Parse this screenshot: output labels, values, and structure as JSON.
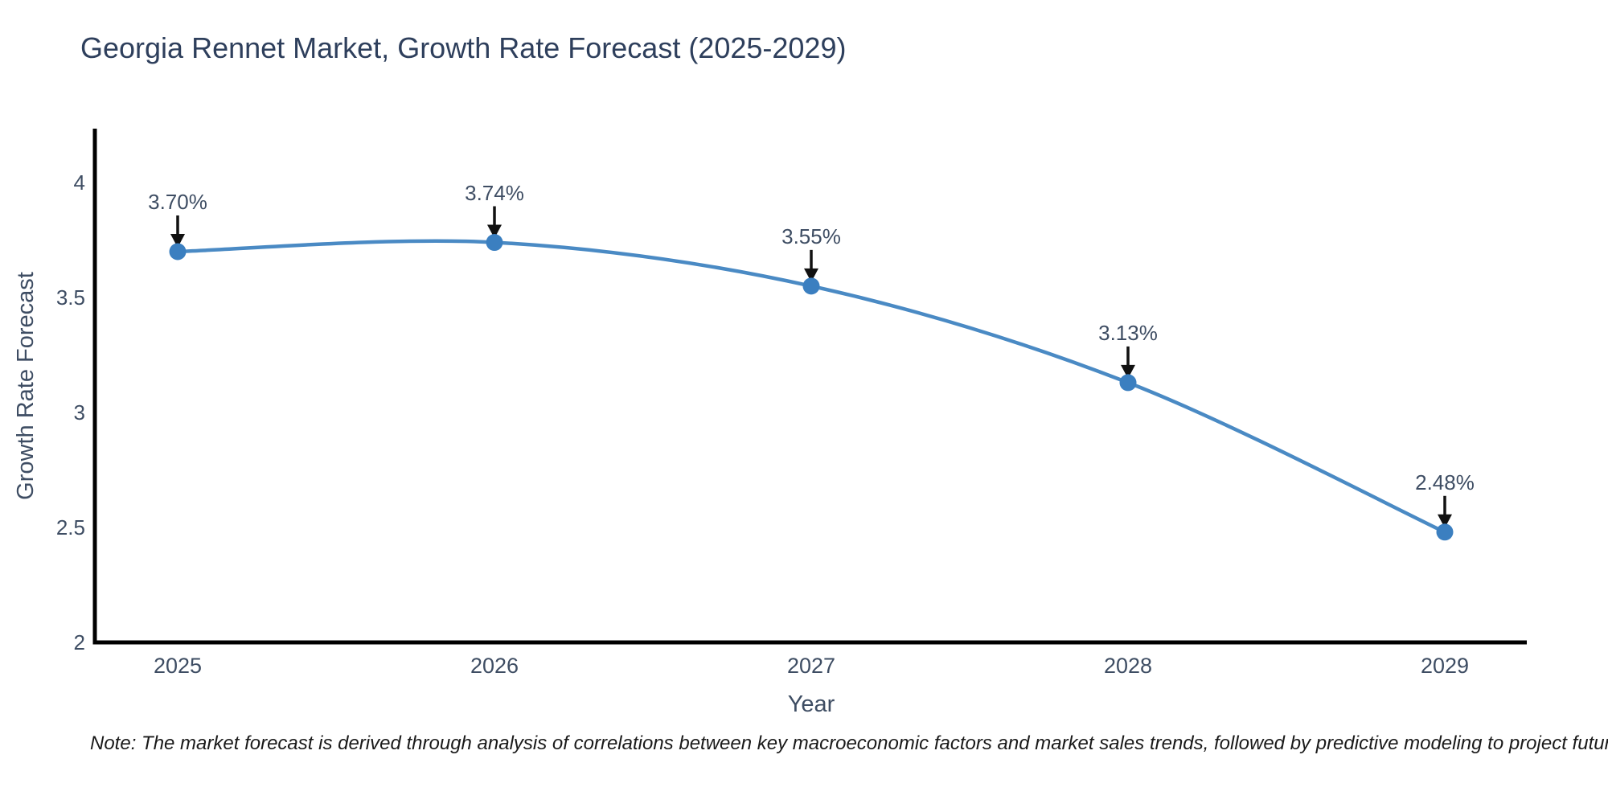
{
  "title": "Georgia Rennet Market, Growth Rate Forecast (2025-2029)",
  "note": "Note: The market forecast is derived through analysis of correlations between key macroeconomic factors and market sales trends, followed by predictive modeling to project future sales",
  "colors": {
    "background": "#ffffff",
    "title": "#2e3f5c",
    "axis_text": "#3e4d63",
    "note": "#1a1a1a"
  },
  "chart_data": {
    "type": "line",
    "title": "Georgia Rennet Market, Growth Rate Forecast (2025-2029)",
    "x": [
      2025,
      2026,
      2027,
      2028,
      2029
    ],
    "xtick_labels": [
      "2025",
      "2026",
      "2027",
      "2028",
      "2029"
    ],
    "series": [
      {
        "name": "Growth Rate Forecast",
        "values": [
          3.7,
          3.74,
          3.55,
          3.13,
          2.48
        ]
      }
    ],
    "point_labels": [
      "3.70%",
      "3.74%",
      "3.55%",
      "3.13%",
      "2.48%"
    ],
    "xlabel": "Year",
    "ylabel": "Growth Rate Forecast",
    "ylim": [
      2,
      4.235
    ],
    "yticks": [
      2,
      2.5,
      3,
      3.5,
      4
    ],
    "ytick_labels": [
      "2",
      "2.5",
      "3",
      "3.5",
      "4"
    ],
    "grid": false,
    "legend_position": "none",
    "smooth": true,
    "line_color": "#4a8ac4",
    "marker_color": "#3b7fc0",
    "axis_line_color": "#000000",
    "arrow_color": "#111111"
  }
}
